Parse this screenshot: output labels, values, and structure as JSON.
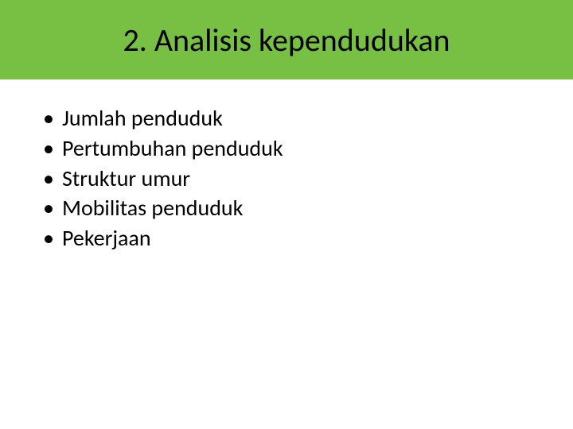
{
  "slide": {
    "title": "2. Analisis kependudukan",
    "title_band_color": "#77c043",
    "title_fontsize": 40,
    "title_color": "#000000",
    "background_color": "#ffffff",
    "bullets": [
      "Jumlah penduduk",
      "Pertumbuhan penduduk",
      "Struktur umur",
      "Mobilitas penduduk",
      "Pekerjaan"
    ],
    "bullet_fontsize": 28,
    "bullet_color": "#000000"
  }
}
